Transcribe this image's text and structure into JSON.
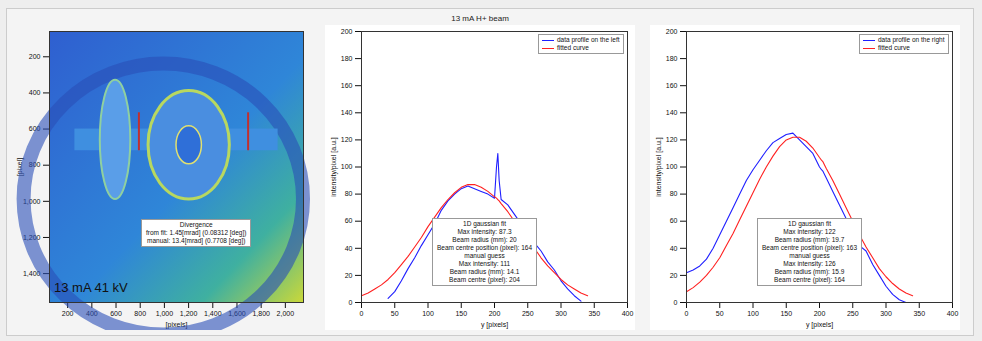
{
  "chart_data": [
    {
      "type": "image",
      "xlabel": "[pixels]",
      "ylabel": "[pixel]",
      "xlim": [
        50,
        2150
      ],
      "ylim": [
        1560,
        60
      ],
      "xticks": [
        200,
        400,
        600,
        800,
        1000,
        1200,
        1400,
        1600,
        1800,
        2000
      ],
      "yticks": [
        200,
        400,
        600,
        800,
        1000,
        1200,
        1400
      ],
      "caption": "13 mA 41 kV",
      "annotations": [
        "Divergence",
        "from fit: 1.45[mrad] (0.08312 [deg])",
        "manual: 13.4[mrad] (0.7708 [deg])"
      ]
    },
    {
      "type": "line",
      "title": "13 mA H+ beam",
      "xlabel": "y [pixels]",
      "ylabel": "intensity/pixel [a.u.]",
      "xlim": [
        0,
        400
      ],
      "ylim": [
        0,
        200
      ],
      "xticks": [
        0,
        50,
        100,
        150,
        200,
        250,
        300,
        350,
        400
      ],
      "yticks": [
        0,
        20,
        40,
        60,
        80,
        100,
        120,
        140,
        160,
        180,
        200
      ],
      "legend": "top-right",
      "x": [
        0,
        10,
        20,
        30,
        40,
        50,
        60,
        70,
        80,
        90,
        100,
        110,
        120,
        130,
        140,
        150,
        160,
        170,
        180,
        190,
        200,
        203,
        205,
        207,
        210,
        220,
        230,
        240,
        250,
        260,
        270,
        280,
        290,
        300,
        310,
        320,
        330,
        340
      ],
      "series": [
        {
          "name": "data profile on the left",
          "color": "#1f1fff",
          "values": [
            null,
            null,
            null,
            null,
            3,
            8,
            16,
            25,
            33,
            42,
            50,
            58,
            68,
            75,
            80,
            84,
            86,
            84,
            82,
            80,
            77,
            100,
            110,
            90,
            76,
            72,
            65,
            58,
            50,
            44,
            38,
            30,
            24,
            16,
            10,
            5,
            1,
            null
          ]
        },
        {
          "name": "fitted curve",
          "color": "#ff2020",
          "values": [
            5,
            7,
            10,
            13,
            17,
            22,
            28,
            34,
            41,
            48,
            56,
            63,
            70,
            76,
            81,
            85,
            87,
            87,
            85,
            82,
            78,
            77,
            76,
            75,
            73,
            67,
            60,
            53,
            46,
            40,
            33,
            27,
            22,
            17,
            13,
            10,
            7,
            5
          ]
        }
      ],
      "annotations": [
        "1D gaussian fit",
        "Max intensity: 87.3",
        "Beam radius (mm): 20",
        "Beam centre position (pixel): 164",
        "manual guess",
        "Max intensity: 111",
        "Beam radius (mm): 14.1",
        "Beam centre (pixel): 204"
      ]
    },
    {
      "type": "line",
      "xlabel": "y [pixels]",
      "ylabel": "intensity/pixel [a.u.]",
      "xlim": [
        0,
        400
      ],
      "ylim": [
        0,
        200
      ],
      "xticks": [
        0,
        50,
        100,
        150,
        200,
        250,
        300,
        350,
        400
      ],
      "yticks": [
        0,
        20,
        40,
        60,
        80,
        100,
        120,
        140,
        160,
        180,
        200
      ],
      "legend": "top-right",
      "x": [
        0,
        10,
        20,
        30,
        40,
        50,
        60,
        70,
        80,
        90,
        100,
        110,
        120,
        130,
        140,
        150,
        160,
        170,
        180,
        190,
        200,
        203,
        205,
        207,
        210,
        220,
        230,
        240,
        250,
        260,
        270,
        280,
        290,
        300,
        310,
        320,
        330,
        340
      ],
      "series": [
        {
          "name": "data profile on the right",
          "color": "#1f1fff",
          "values": [
            22,
            24,
            27,
            32,
            40,
            50,
            60,
            70,
            80,
            90,
            98,
            105,
            112,
            118,
            121,
            124,
            125,
            120,
            115,
            110,
            100,
            98,
            97,
            95,
            92,
            82,
            72,
            62,
            52,
            42,
            38,
            28,
            20,
            12,
            6,
            2,
            0,
            null
          ]
        },
        {
          "name": "fitted curve",
          "color": "#ff2020",
          "values": [
            8,
            11,
            15,
            20,
            26,
            33,
            42,
            51,
            61,
            71,
            81,
            91,
            100,
            108,
            115,
            120,
            122,
            122,
            119,
            114,
            107,
            105,
            104,
            102,
            99,
            90,
            80,
            70,
            60,
            50,
            41,
            33,
            25,
            19,
            14,
            10,
            7,
            5
          ]
        }
      ],
      "annotations": [
        "1D gaussian fit",
        "Max intensity: 122",
        "Beam radius (mm): 19.7",
        "Beam centre position (pixel): 163",
        "manual guess",
        "Max intensity: 126",
        "Beam radius (mm): 15.9",
        "Beam centre (pixel): 164"
      ]
    }
  ]
}
